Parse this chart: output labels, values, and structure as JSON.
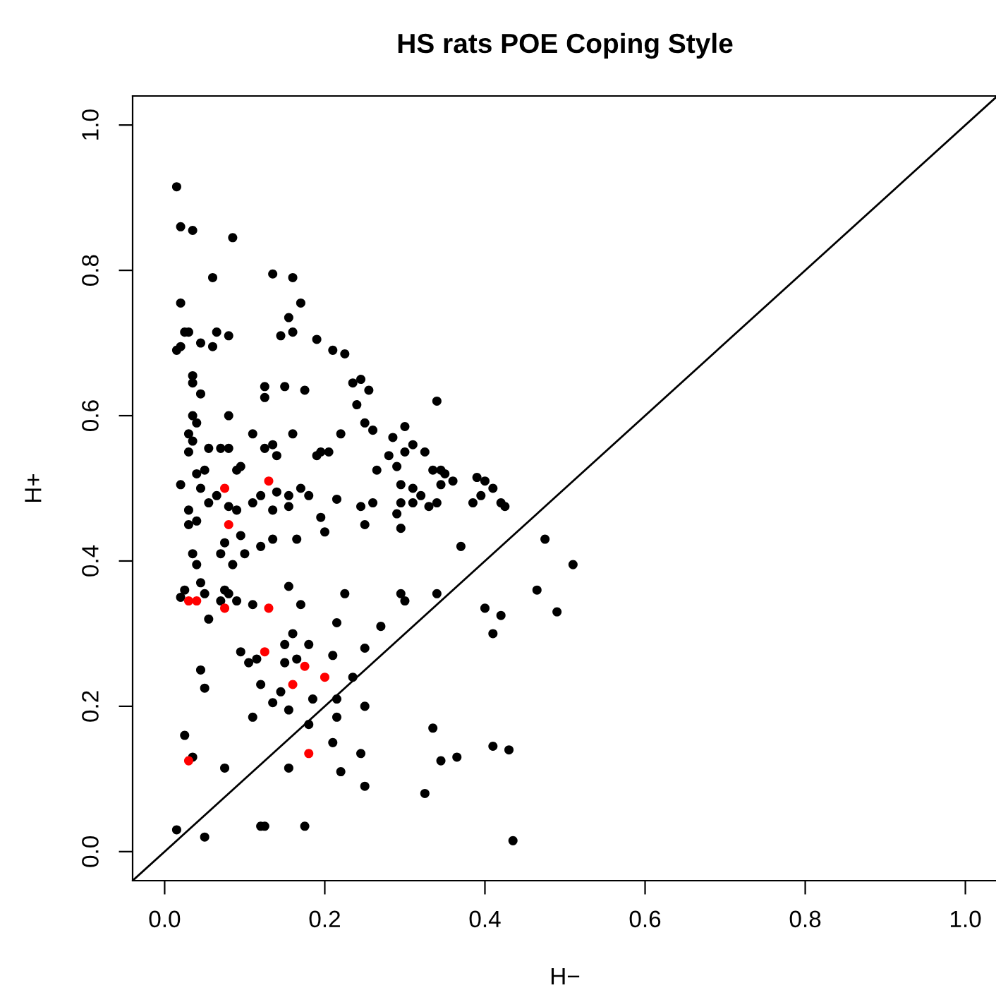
{
  "chart_data": {
    "type": "scatter",
    "title": "HS rats POE Coping Style",
    "xlabel": "H−",
    "ylabel": "H+",
    "xlim": [
      -0.04,
      1.04
    ],
    "ylim": [
      -0.04,
      1.04
    ],
    "xticks": [
      {
        "value": 0,
        "label": "0.0"
      },
      0.2,
      0.4,
      0.6,
      0.8,
      {
        "value": 1,
        "label": "1.0"
      }
    ],
    "yticks": [
      {
        "value": 0,
        "label": "0.0"
      },
      0.2,
      0.4,
      0.6,
      0.8,
      {
        "value": 1,
        "label": "1.0"
      }
    ],
    "grid": false,
    "legend": false,
    "marker": "circle",
    "series": [
      {
        "color": "#000000",
        "x": [
          0.015,
          0.02,
          0.035,
          0.085,
          0.06,
          0.135,
          0.16,
          0.02,
          0.17,
          0.025,
          0.03,
          0.065,
          0.08,
          0.145,
          0.16,
          0.155,
          0.015,
          0.02,
          0.045,
          0.06,
          0.19,
          0.21,
          0.225,
          0.035,
          0.035,
          0.045,
          0.125,
          0.15,
          0.175,
          0.235,
          0.245,
          0.255,
          0.035,
          0.04,
          0.08,
          0.125,
          0.03,
          0.035,
          0.11,
          0.16,
          0.24,
          0.25,
          0.22,
          0.285,
          0.3,
          0.34,
          0.03,
          0.055,
          0.07,
          0.08,
          0.125,
          0.135,
          0.195,
          0.205,
          0.26,
          0.31,
          0.325,
          0.19,
          0.04,
          0.05,
          0.09,
          0.095,
          0.14,
          0.265,
          0.28,
          0.29,
          0.3,
          0.335,
          0.345,
          0.35,
          0.02,
          0.045,
          0.055,
          0.065,
          0.12,
          0.14,
          0.155,
          0.17,
          0.18,
          0.215,
          0.245,
          0.26,
          0.295,
          0.31,
          0.32,
          0.39,
          0.4,
          0.41,
          0.42,
          0.425,
          0.385,
          0.395,
          0.36,
          0.345,
          0.34,
          0.33,
          0.31,
          0.295,
          0.29,
          0.03,
          0.04,
          0.08,
          0.09,
          0.11,
          0.135,
          0.155,
          0.195,
          0.25,
          0.295,
          0.03,
          0.035,
          0.04,
          0.07,
          0.075,
          0.085,
          0.095,
          0.1,
          0.12,
          0.135,
          0.2,
          0.165,
          0.37,
          0.02,
          0.025,
          0.045,
          0.05,
          0.055,
          0.07,
          0.075,
          0.08,
          0.09,
          0.11,
          0.17,
          0.155,
          0.225,
          0.3,
          0.295,
          0.34,
          0.4,
          0.42,
          0.41,
          0.465,
          0.475,
          0.51,
          0.49,
          0.27,
          0.215,
          0.16,
          0.095,
          0.105,
          0.115,
          0.15,
          0.165,
          0.15,
          0.18,
          0.21,
          0.25,
          0.045,
          0.05,
          0.11,
          0.12,
          0.135,
          0.145,
          0.155,
          0.185,
          0.215,
          0.215,
          0.235,
          0.25,
          0.025,
          0.035,
          0.075,
          0.155,
          0.18,
          0.21,
          0.22,
          0.245,
          0.25,
          0.335,
          0.345,
          0.365,
          0.41,
          0.43,
          0.325,
          0.015,
          0.05,
          0.12,
          0.125,
          0.175,
          0.435
        ],
        "values": [
          0.915,
          0.86,
          0.855,
          0.845,
          0.79,
          0.795,
          0.79,
          0.755,
          0.755,
          0.715,
          0.715,
          0.715,
          0.71,
          0.71,
          0.715,
          0.735,
          0.69,
          0.695,
          0.7,
          0.695,
          0.705,
          0.69,
          0.685,
          0.655,
          0.645,
          0.63,
          0.64,
          0.64,
          0.635,
          0.645,
          0.65,
          0.635,
          0.6,
          0.59,
          0.6,
          0.625,
          0.575,
          0.565,
          0.575,
          0.575,
          0.615,
          0.59,
          0.575,
          0.57,
          0.585,
          0.62,
          0.55,
          0.555,
          0.555,
          0.555,
          0.555,
          0.56,
          0.55,
          0.55,
          0.58,
          0.56,
          0.55,
          0.545,
          0.52,
          0.525,
          0.525,
          0.53,
          0.545,
          0.525,
          0.545,
          0.53,
          0.55,
          0.525,
          0.525,
          0.52,
          0.505,
          0.5,
          0.48,
          0.49,
          0.49,
          0.495,
          0.49,
          0.5,
          0.49,
          0.485,
          0.475,
          0.48,
          0.505,
          0.5,
          0.49,
          0.515,
          0.51,
          0.5,
          0.48,
          0.475,
          0.48,
          0.49,
          0.51,
          0.505,
          0.48,
          0.475,
          0.48,
          0.48,
          0.465,
          0.47,
          0.455,
          0.475,
          0.47,
          0.48,
          0.47,
          0.475,
          0.46,
          0.45,
          0.445,
          0.45,
          0.41,
          0.395,
          0.41,
          0.425,
          0.395,
          0.435,
          0.41,
          0.42,
          0.43,
          0.44,
          0.43,
          0.42,
          0.35,
          0.36,
          0.37,
          0.355,
          0.32,
          0.345,
          0.36,
          0.355,
          0.345,
          0.34,
          0.34,
          0.365,
          0.355,
          0.345,
          0.355,
          0.355,
          0.335,
          0.325,
          0.3,
          0.36,
          0.43,
          0.395,
          0.33,
          0.31,
          0.315,
          0.3,
          0.275,
          0.26,
          0.265,
          0.26,
          0.265,
          0.285,
          0.285,
          0.27,
          0.28,
          0.25,
          0.225,
          0.185,
          0.23,
          0.205,
          0.22,
          0.195,
          0.21,
          0.21,
          0.185,
          0.24,
          0.2,
          0.16,
          0.13,
          0.115,
          0.115,
          0.175,
          0.15,
          0.11,
          0.135,
          0.09,
          0.17,
          0.125,
          0.13,
          0.145,
          0.14,
          0.08,
          0.03,
          0.02,
          0.035,
          0.035,
          0.035,
          0.015
        ]
      },
      {
        "color": "#ff0000",
        "x": [
          0.075,
          0.08,
          0.13,
          0.03,
          0.04,
          0.075,
          0.13,
          0.125,
          0.16,
          0.175,
          0.2,
          0.18,
          0.03
        ],
        "values": [
          0.5,
          0.45,
          0.51,
          0.345,
          0.345,
          0.335,
          0.335,
          0.275,
          0.23,
          0.255,
          0.24,
          0.135,
          0.125
        ]
      },
      {
        "type": "line",
        "color": "#000000",
        "marker": "none",
        "x": [
          -0.04,
          1.04
        ],
        "values": [
          -0.04,
          1.04
        ]
      }
    ]
  }
}
